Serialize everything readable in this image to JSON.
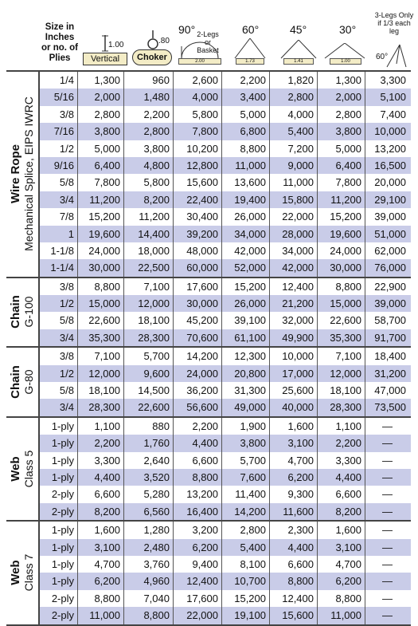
{
  "header": {
    "size_label": "Size in Inches or no. of Plies",
    "vertical": {
      "label": "Vertical",
      "factor": "1.00"
    },
    "choker": {
      "label": "Choker",
      "factor": ".80"
    },
    "angles": [
      {
        "angle": "90°",
        "note": "2-Legs or Basket",
        "factor": "2.00"
      },
      {
        "angle": "60°",
        "factor": "1.73"
      },
      {
        "angle": "45°",
        "factor": "1.41"
      },
      {
        "angle": "30°",
        "factor": "1.00"
      }
    ],
    "three_leg": {
      "note": "3-Legs Only if 1/3 each leg",
      "angle": "60°"
    }
  },
  "groups": [
    {
      "title": "Wire Rope",
      "subtitle": "Mechanical Splice, EIPS IWRC",
      "rows": [
        [
          "1/4",
          "1,300",
          "960",
          "2,600",
          "2,200",
          "1,820",
          "1,300",
          "3,300"
        ],
        [
          "5/16",
          "2,000",
          "1,480",
          "4,000",
          "3,400",
          "2,800",
          "2,000",
          "5,100"
        ],
        [
          "3/8",
          "2,800",
          "2,200",
          "5,800",
          "5,000",
          "4,000",
          "2,800",
          "7,400"
        ],
        [
          "7/16",
          "3,800",
          "2,800",
          "7,800",
          "6,800",
          "5,400",
          "3,800",
          "10,000"
        ],
        [
          "1/2",
          "5,000",
          "3,800",
          "10,200",
          "8,800",
          "7,200",
          "5,000",
          "13,200"
        ],
        [
          "9/16",
          "6,400",
          "4,800",
          "12,800",
          "11,000",
          "9,000",
          "6,400",
          "16,500"
        ],
        [
          "5/8",
          "7,800",
          "5,800",
          "15,600",
          "13,600",
          "11,000",
          "7,800",
          "20,000"
        ],
        [
          "3/4",
          "11,200",
          "8,200",
          "22,400",
          "19,400",
          "15,800",
          "11,200",
          "29,100"
        ],
        [
          "7/8",
          "15,200",
          "11,200",
          "30,400",
          "26,000",
          "22,000",
          "15,200",
          "39,000"
        ],
        [
          "1",
          "19,600",
          "14,400",
          "39,200",
          "34,000",
          "28,000",
          "19,600",
          "51,000"
        ],
        [
          "1-1/8",
          "24,000",
          "18,000",
          "48,000",
          "42,000",
          "34,000",
          "24,000",
          "62,000"
        ],
        [
          "1-1/4",
          "30,000",
          "22,500",
          "60,000",
          "52,000",
          "42,000",
          "30,000",
          "76,000"
        ]
      ]
    },
    {
      "title": "Chain",
      "subtitle": "G-100",
      "rows": [
        [
          "3/8",
          "8,800",
          "7,100",
          "17,600",
          "15,200",
          "12,400",
          "8,800",
          "22,900"
        ],
        [
          "1/2",
          "15,000",
          "12,000",
          "30,000",
          "26,000",
          "21,200",
          "15,000",
          "39,000"
        ],
        [
          "5/8",
          "22,600",
          "18,100",
          "45,200",
          "39,100",
          "32,000",
          "22,600",
          "58,700"
        ],
        [
          "3/4",
          "35,300",
          "28,300",
          "70,600",
          "61,100",
          "49,900",
          "35,300",
          "91,700"
        ]
      ]
    },
    {
      "title": "Chain",
      "subtitle": "G-80",
      "rows": [
        [
          "3/8",
          "7,100",
          "5,700",
          "14,200",
          "12,300",
          "10,000",
          "7,100",
          "18,400"
        ],
        [
          "1/2",
          "12,000",
          "9,600",
          "24,000",
          "20,800",
          "17,000",
          "12,000",
          "31,200"
        ],
        [
          "5/8",
          "18,100",
          "14,500",
          "36,200",
          "31,300",
          "25,600",
          "18,100",
          "47,000"
        ],
        [
          "3/4",
          "28,300",
          "22,600",
          "56,600",
          "49,000",
          "40,000",
          "28,300",
          "73,500"
        ]
      ]
    },
    {
      "title": "Web",
      "subtitle": "Class 5",
      "rows": [
        [
          "1-ply",
          "1,100",
          "880",
          "2,200",
          "1,900",
          "1,600",
          "1,100",
          "—"
        ],
        [
          "1-ply",
          "2,200",
          "1,760",
          "4,400",
          "3,800",
          "3,100",
          "2,200",
          "—"
        ],
        [
          "1-ply",
          "3,300",
          "2,640",
          "6,600",
          "5,700",
          "4,700",
          "3,300",
          "—"
        ],
        [
          "1-ply",
          "4,400",
          "3,520",
          "8,800",
          "7,600",
          "6,200",
          "4,400",
          "—"
        ],
        [
          "2-ply",
          "6,600",
          "5,280",
          "13,200",
          "11,400",
          "9,300",
          "6,600",
          "—"
        ],
        [
          "2-ply",
          "8,200",
          "6,560",
          "16,400",
          "14,200",
          "11,600",
          "8,200",
          "—"
        ]
      ]
    },
    {
      "title": "Web",
      "subtitle": "Class 7",
      "rows": [
        [
          "1-ply",
          "1,600",
          "1,280",
          "3,200",
          "2,800",
          "2,300",
          "1,600",
          "—"
        ],
        [
          "1-ply",
          "3,100",
          "2,480",
          "6,200",
          "5,400",
          "4,400",
          "3,100",
          "—"
        ],
        [
          "1-ply",
          "4,700",
          "3,760",
          "9,400",
          "8,100",
          "6,600",
          "4,700",
          "—"
        ],
        [
          "1-ply",
          "6,200",
          "4,960",
          "12,400",
          "10,700",
          "8,800",
          "6,200",
          "—"
        ],
        [
          "2-ply",
          "8,800",
          "7,040",
          "17,600",
          "15,200",
          "12,400",
          "8,800",
          "—"
        ],
        [
          "2-ply",
          "11,000",
          "8,800",
          "22,000",
          "19,100",
          "15,600",
          "11,000",
          "—"
        ]
      ]
    }
  ]
}
